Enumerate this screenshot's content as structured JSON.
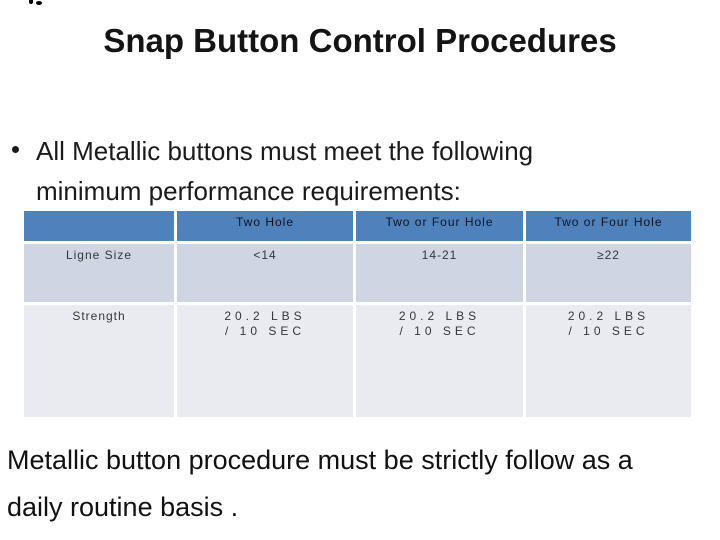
{
  "slide": {
    "title": "Snap Button Control Procedures"
  },
  "bullet": {
    "lines": [
      "All Metallic buttons must meet the following",
      "minimum performance requirements:"
    ]
  },
  "table": {
    "header": [
      "",
      "Two Hole",
      "Two or Four Hole",
      "Two or Four Hole"
    ],
    "rows": [
      {
        "label": "Ligne Size",
        "cells": [
          {
            "line1": "<14"
          },
          {
            "line1": "14-21"
          },
          {
            "line1": "≥22"
          }
        ]
      },
      {
        "label": "Strength",
        "cells": [
          {
            "line1": "20.2 LBS",
            "line2": "/ 10 SEC"
          },
          {
            "line1": "20.2 LBS",
            "line2": "/ 10 SEC"
          },
          {
            "line1": "20.2 LBS",
            "line2": "/ 10 SEC"
          }
        ]
      }
    ]
  },
  "footer": {
    "lines": [
      "Metallic button procedure must be strictly follow as a",
      "daily routine basis ."
    ]
  },
  "colors": {
    "table_header_bg": "#4F81BD",
    "table_row_odd_bg": "#CFD5E3",
    "table_row_even_bg": "#E9EBF1",
    "text": "#141414"
  }
}
